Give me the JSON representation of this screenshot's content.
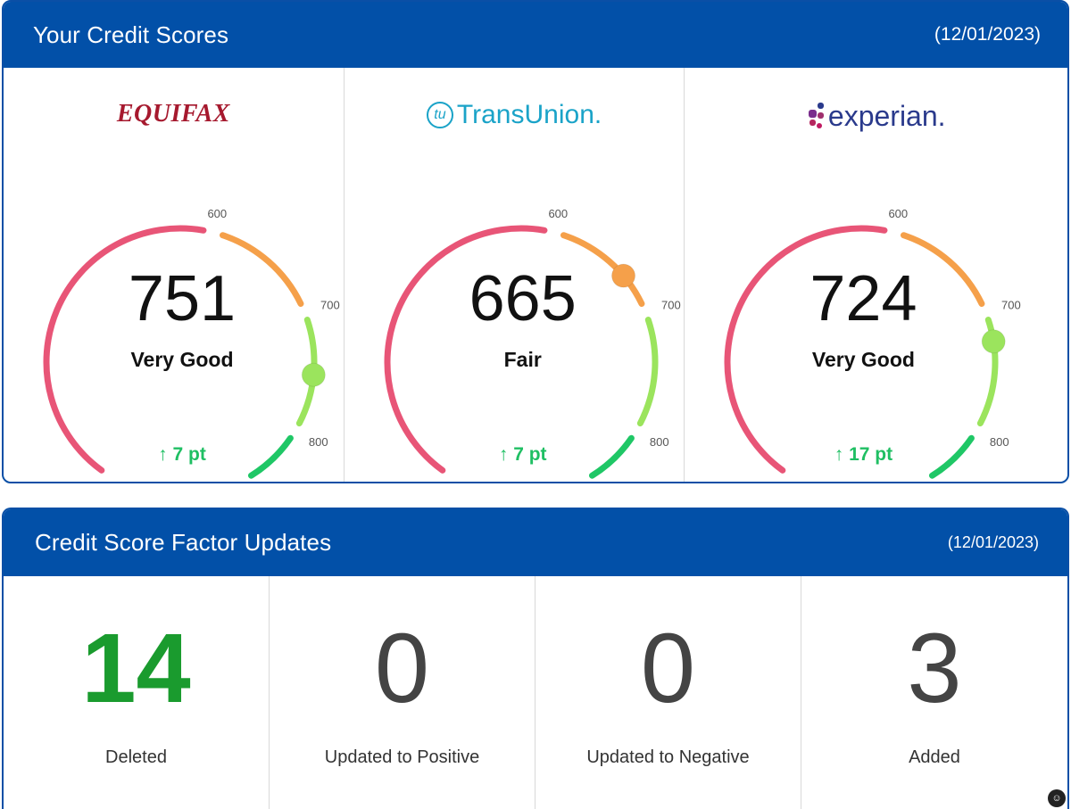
{
  "scores_panel": {
    "title": "Your Credit Scores",
    "date": "(12/01/2023)",
    "bureaus": [
      {
        "name": "EQUIFAX",
        "score": "751",
        "score_value": 751,
        "rating": "Very Good",
        "change": "↑ 7 pt",
        "ticks": [
          "600",
          "700",
          "800"
        ]
      },
      {
        "name": "TransUnion.",
        "mark": "tu",
        "score": "665",
        "score_value": 665,
        "rating": "Fair",
        "change": "↑ 7 pt",
        "ticks": [
          "600",
          "700",
          "800"
        ]
      },
      {
        "name": "experian.",
        "score": "724",
        "score_value": 724,
        "rating": "Very Good",
        "change": "↑ 17 pt",
        "ticks": [
          "600",
          "700",
          "800"
        ]
      }
    ],
    "gauge_colors": {
      "poor": "#e85577",
      "fair": "#f5a04a",
      "good": "#9be45d",
      "excellent": "#1fc766"
    }
  },
  "factors_panel": {
    "title": "Credit Score Factor Updates",
    "date": "(12/01/2023)",
    "factors": [
      {
        "value": "14",
        "label": "Deleted"
      },
      {
        "value": "0",
        "label": "Updated to Positive"
      },
      {
        "value": "0",
        "label": "Updated to Negative"
      },
      {
        "value": "3",
        "label": "Added"
      }
    ]
  },
  "icons": {
    "corner": "chat-icon"
  }
}
